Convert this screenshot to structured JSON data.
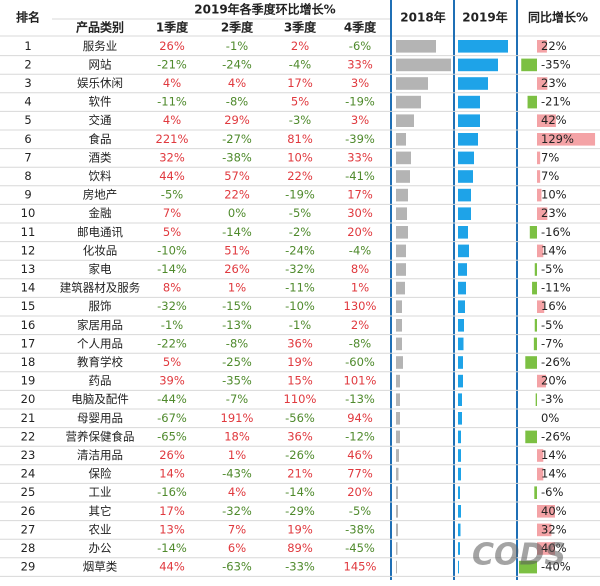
{
  "header": {
    "rank": "排名",
    "category": "产品类别",
    "quarter_group": "2019年各季度环比增长%",
    "quarters": [
      "1季度",
      "2季度",
      "3季度",
      "4季度"
    ],
    "y2018": "2018年",
    "y2019": "2019年",
    "yoy": "同比增长%"
  },
  "watermark": "CODS",
  "rows": [
    {
      "rank": "1",
      "category": "服务业",
      "quarters": [
        "26%",
        "-1%",
        "2%",
        "-6%"
      ],
      "v2018": 40,
      "v2019": 50,
      "yoy": 22,
      "yoy_label": "22%"
    },
    {
      "rank": "2",
      "category": "网站",
      "quarters": [
        "-21%",
        "-24%",
        "-4%",
        "33%"
      ],
      "v2018": 55,
      "v2019": 40,
      "yoy": -35,
      "yoy_label": "-35%"
    },
    {
      "rank": "3",
      "category": "娱乐休闲",
      "quarters": [
        "4%",
        "4%",
        "17%",
        "3%"
      ],
      "v2018": 32,
      "v2019": 30,
      "yoy": 23,
      "yoy_label": "23%"
    },
    {
      "rank": "4",
      "category": "软件",
      "quarters": [
        "-11%",
        "-8%",
        "5%",
        "-19%"
      ],
      "v2018": 25,
      "v2019": 22,
      "yoy": -21,
      "yoy_label": "-21%"
    },
    {
      "rank": "5",
      "category": "交通",
      "quarters": [
        "4%",
        "29%",
        "-3%",
        "3%"
      ],
      "v2018": 18,
      "v2019": 22,
      "yoy": 42,
      "yoy_label": "42%"
    },
    {
      "rank": "6",
      "category": "食品",
      "quarters": [
        "221%",
        "-27%",
        "81%",
        "-39%"
      ],
      "v2018": 10,
      "v2019": 20,
      "yoy": 129,
      "yoy_label": "129%"
    },
    {
      "rank": "7",
      "category": "酒类",
      "quarters": [
        "32%",
        "-38%",
        "10%",
        "33%"
      ],
      "v2018": 15,
      "v2019": 16,
      "yoy": 7,
      "yoy_label": "7%"
    },
    {
      "rank": "8",
      "category": "饮料",
      "quarters": [
        "44%",
        "57%",
        "22%",
        "-41%"
      ],
      "v2018": 14,
      "v2019": 15,
      "yoy": 7,
      "yoy_label": "7%"
    },
    {
      "rank": "9",
      "category": "房地产",
      "quarters": [
        "-5%",
        "22%",
        "-19%",
        "17%"
      ],
      "v2018": 12,
      "v2019": 13,
      "yoy": 10,
      "yoy_label": "10%"
    },
    {
      "rank": "10",
      "category": "金融",
      "quarters": [
        "7%",
        "0%",
        "-5%",
        "30%"
      ],
      "v2018": 11,
      "v2019": 13,
      "yoy": 23,
      "yoy_label": "23%"
    },
    {
      "rank": "11",
      "category": "邮电通讯",
      "quarters": [
        "5%",
        "-14%",
        "-2%",
        "20%"
      ],
      "v2018": 12,
      "v2019": 10,
      "yoy": -16,
      "yoy_label": "-16%"
    },
    {
      "rank": "12",
      "category": "化妆品",
      "quarters": [
        "-10%",
        "51%",
        "-24%",
        "-4%"
      ],
      "v2018": 10,
      "v2019": 11,
      "yoy": 14,
      "yoy_label": "14%"
    },
    {
      "rank": "13",
      "category": "家电",
      "quarters": [
        "-14%",
        "26%",
        "-32%",
        "8%"
      ],
      "v2018": 10,
      "v2019": 9,
      "yoy": -5,
      "yoy_label": "-5%"
    },
    {
      "rank": "14",
      "category": "建筑器材及服务",
      "quarters": [
        "8%",
        "1%",
        "-11%",
        "1%"
      ],
      "v2018": 9,
      "v2019": 8,
      "yoy": -11,
      "yoy_label": "-11%"
    },
    {
      "rank": "15",
      "category": "服饰",
      "quarters": [
        "-32%",
        "-15%",
        "-10%",
        "130%"
      ],
      "v2018": 6,
      "v2019": 7,
      "yoy": 16,
      "yoy_label": "16%"
    },
    {
      "rank": "16",
      "category": "家居用品",
      "quarters": [
        "-1%",
        "-13%",
        "-1%",
        "2%"
      ],
      "v2018": 6,
      "v2019": 6,
      "yoy": -5,
      "yoy_label": "-5%"
    },
    {
      "rank": "17",
      "category": "个人用品",
      "quarters": [
        "-22%",
        "-8%",
        "36%",
        "-8%"
      ],
      "v2018": 6,
      "v2019": 5.5,
      "yoy": -7,
      "yoy_label": "-7%"
    },
    {
      "rank": "18",
      "category": "教育学校",
      "quarters": [
        "5%",
        "-25%",
        "19%",
        "-60%"
      ],
      "v2018": 7,
      "v2019": 5,
      "yoy": -26,
      "yoy_label": "-26%"
    },
    {
      "rank": "19",
      "category": "药品",
      "quarters": [
        "39%",
        "-35%",
        "15%",
        "101%"
      ],
      "v2018": 4,
      "v2019": 5,
      "yoy": 20,
      "yoy_label": "20%"
    },
    {
      "rank": "20",
      "category": "电脑及配件",
      "quarters": [
        "-44%",
        "-7%",
        "110%",
        "-13%"
      ],
      "v2018": 4,
      "v2019": 4,
      "yoy": -3,
      "yoy_label": "-3%"
    },
    {
      "rank": "21",
      "category": "母婴用品",
      "quarters": [
        "-67%",
        "191%",
        "-56%",
        "94%"
      ],
      "v2018": 4,
      "v2019": 4,
      "yoy": 0,
      "yoy_label": "0%"
    },
    {
      "rank": "22",
      "category": "营养保健食品",
      "quarters": [
        "-65%",
        "18%",
        "36%",
        "-12%"
      ],
      "v2018": 4,
      "v2019": 3,
      "yoy": -26,
      "yoy_label": "-26%"
    },
    {
      "rank": "23",
      "category": "清洁用品",
      "quarters": [
        "26%",
        "1%",
        "-26%",
        "46%"
      ],
      "v2018": 3,
      "v2019": 3,
      "yoy": 14,
      "yoy_label": "14%"
    },
    {
      "rank": "24",
      "category": "保险",
      "quarters": [
        "14%",
        "-43%",
        "21%",
        "77%"
      ],
      "v2018": 2.5,
      "v2019": 3,
      "yoy": 14,
      "yoy_label": "14%"
    },
    {
      "rank": "25",
      "category": "工业",
      "quarters": [
        "-16%",
        "4%",
        "-14%",
        "20%"
      ],
      "v2018": 2,
      "v2019": 2,
      "yoy": -6,
      "yoy_label": "-6%"
    },
    {
      "rank": "26",
      "category": "其它",
      "quarters": [
        "17%",
        "-32%",
        "-29%",
        "-5%"
      ],
      "v2018": 2,
      "v2019": 3,
      "yoy": 40,
      "yoy_label": "40%"
    },
    {
      "rank": "27",
      "category": "农业",
      "quarters": [
        "13%",
        "7%",
        "19%",
        "-38%"
      ],
      "v2018": 2,
      "v2019": 2.5,
      "yoy": 32,
      "yoy_label": "32%"
    },
    {
      "rank": "28",
      "category": "办公",
      "quarters": [
        "-14%",
        "6%",
        "89%",
        "-45%"
      ],
      "v2018": 1.5,
      "v2019": 2,
      "yoy": 40,
      "yoy_label": "40%"
    },
    {
      "rank": "29",
      "category": "烟草类",
      "quarters": [
        "44%",
        "-63%",
        "-33%",
        "145%"
      ],
      "v2018": 1,
      "v2019": 1,
      "yoy": -40,
      "yoy_label": "-40%"
    }
  ]
}
